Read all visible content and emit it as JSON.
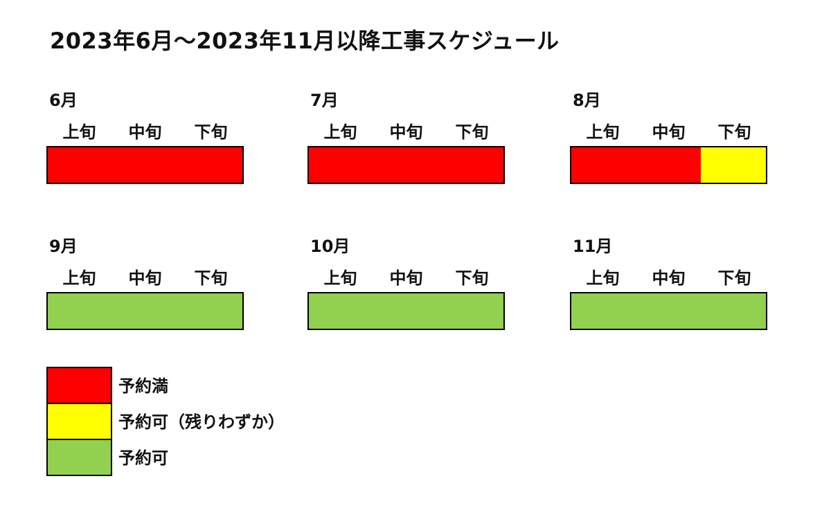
{
  "title": "2023年6月～2023年11月以降工事スケジュール",
  "periods": [
    "上旬",
    "中旬",
    "下旬"
  ],
  "colors": {
    "full": "#ff0000",
    "few": "#ffff00",
    "available": "#92d050"
  },
  "months": [
    {
      "label": "6月",
      "status": [
        "full",
        "full",
        "full"
      ]
    },
    {
      "label": "7月",
      "status": [
        "full",
        "full",
        "full"
      ]
    },
    {
      "label": "8月",
      "status": [
        "full",
        "full",
        "few"
      ]
    },
    {
      "label": "9月",
      "status": [
        "available",
        "available",
        "available"
      ]
    },
    {
      "label": "10月",
      "status": [
        "available",
        "available",
        "available"
      ]
    },
    {
      "label": "11月",
      "status": [
        "available",
        "available",
        "available"
      ]
    }
  ],
  "legend": [
    {
      "key": "full",
      "label": "予約満"
    },
    {
      "key": "few",
      "label": "予約可（残りわずか）"
    },
    {
      "key": "available",
      "label": "予約可"
    }
  ]
}
